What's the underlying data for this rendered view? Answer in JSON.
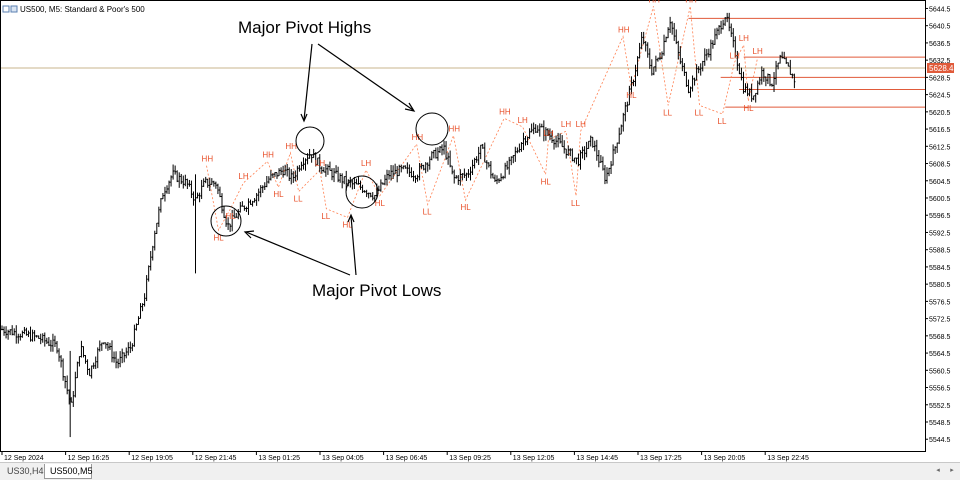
{
  "header": {
    "title": "US500, M5:  Standard & Poor's 500"
  },
  "annotations": {
    "major_pivot_highs": "Major Pivot Highs",
    "major_pivot_lows": "Major Pivot Lows"
  },
  "current_price_label": "5628.4",
  "tabs": [
    "US30,H4",
    "US500,M5"
  ],
  "colors": {
    "background": "#ffffff",
    "candle": "#000000",
    "pivot_label": "#e8502a",
    "pivot_line": "#e05a3a",
    "zigzag": "#ff7f50",
    "current_price_line": "#c8b48c"
  },
  "chart_data": {
    "type": "candlestick",
    "symbol": "US500",
    "timeframe": "M5",
    "y_axis_ticks": [
      5644.5,
      5640.5,
      5636.5,
      5632.5,
      5628.5,
      5624.5,
      5620.5,
      5616.5,
      5612.5,
      5608.5,
      5604.5,
      5600.5,
      5596.5,
      5592.5,
      5588.5,
      5584.5,
      5580.5,
      5576.5,
      5572.5,
      5568.5,
      5564.5,
      5560.5,
      5556.5,
      5552.5,
      5548.5,
      5544.5
    ],
    "x_axis_ticks": [
      "12 Sep 2024",
      "12 Sep 16:25",
      "12 Sep 19:05",
      "12 Sep 21:45",
      "13 Sep 01:25",
      "13 Sep 04:05",
      "13 Sep 06:45",
      "13 Sep 09:25",
      "13 Sep 12:05",
      "13 Sep 14:45",
      "13 Sep 17:25",
      "13 Sep 20:05",
      "13 Sep 22:45"
    ],
    "ylim": [
      5542,
      5646
    ],
    "price_path": [
      {
        "t": 0,
        "p": 5570
      },
      {
        "t": 0.02,
        "p": 5569
      },
      {
        "t": 0.04,
        "p": 5568
      },
      {
        "t": 0.06,
        "p": 5566
      },
      {
        "t": 0.075,
        "p": 5552
      },
      {
        "t": 0.085,
        "p": 5566
      },
      {
        "t": 0.095,
        "p": 5560
      },
      {
        "t": 0.11,
        "p": 5568
      },
      {
        "t": 0.125,
        "p": 5562
      },
      {
        "t": 0.14,
        "p": 5566
      },
      {
        "t": 0.155,
        "p": 5578
      },
      {
        "t": 0.165,
        "p": 5592
      },
      {
        "t": 0.175,
        "p": 5602
      },
      {
        "t": 0.185,
        "p": 5606
      },
      {
        "t": 0.2,
        "p": 5604
      },
      {
        "t": 0.21,
        "p": 5600
      },
      {
        "t": 0.22,
        "p": 5604
      },
      {
        "t": 0.232,
        "p": 5604
      },
      {
        "t": 0.245,
        "p": 5594
      },
      {
        "t": 0.26,
        "p": 5598
      },
      {
        "t": 0.275,
        "p": 5601
      },
      {
        "t": 0.29,
        "p": 5605
      },
      {
        "t": 0.305,
        "p": 5607
      },
      {
        "t": 0.315,
        "p": 5605
      },
      {
        "t": 0.325,
        "p": 5609
      },
      {
        "t": 0.335,
        "p": 5611
      },
      {
        "t": 0.345,
        "p": 5608
      },
      {
        "t": 0.36,
        "p": 5606
      },
      {
        "t": 0.375,
        "p": 5604
      },
      {
        "t": 0.39,
        "p": 5603
      },
      {
        "t": 0.405,
        "p": 5601
      },
      {
        "t": 0.42,
        "p": 5606
      },
      {
        "t": 0.435,
        "p": 5607
      },
      {
        "t": 0.45,
        "p": 5606
      },
      {
        "t": 0.465,
        "p": 5610
      },
      {
        "t": 0.48,
        "p": 5612
      },
      {
        "t": 0.49,
        "p": 5605
      },
      {
        "t": 0.505,
        "p": 5606
      },
      {
        "t": 0.52,
        "p": 5612
      },
      {
        "t": 0.535,
        "p": 5604
      },
      {
        "t": 0.55,
        "p": 5608
      },
      {
        "t": 0.565,
        "p": 5614
      },
      {
        "t": 0.58,
        "p": 5617
      },
      {
        "t": 0.595,
        "p": 5615
      },
      {
        "t": 0.61,
        "p": 5612
      },
      {
        "t": 0.625,
        "p": 5609
      },
      {
        "t": 0.64,
        "p": 5614
      },
      {
        "t": 0.655,
        "p": 5605
      },
      {
        "t": 0.665,
        "p": 5612
      },
      {
        "t": 0.675,
        "p": 5620
      },
      {
        "t": 0.685,
        "p": 5628
      },
      {
        "t": 0.695,
        "p": 5638
      },
      {
        "t": 0.705,
        "p": 5630
      },
      {
        "t": 0.715,
        "p": 5634
      },
      {
        "t": 0.725,
        "p": 5642
      },
      {
        "t": 0.735,
        "p": 5633
      },
      {
        "t": 0.745,
        "p": 5626
      },
      {
        "t": 0.755,
        "p": 5630
      },
      {
        "t": 0.77,
        "p": 5636
      },
      {
        "t": 0.785,
        "p": 5643
      },
      {
        "t": 0.795,
        "p": 5635
      },
      {
        "t": 0.805,
        "p": 5626
      },
      {
        "t": 0.815,
        "p": 5624
      },
      {
        "t": 0.825,
        "p": 5630
      },
      {
        "t": 0.835,
        "p": 5627
      },
      {
        "t": 0.845,
        "p": 5633
      },
      {
        "t": 0.855,
        "p": 5630
      },
      {
        "t": 0.86,
        "p": 5628
      }
    ],
    "pivots": [
      {
        "label": "HH",
        "t": 0.222,
        "p": 5608
      },
      {
        "label": "HL",
        "t": 0.235,
        "p": 5593
      },
      {
        "label": "HL",
        "t": 0.248,
        "p": 5598
      },
      {
        "label": "LH",
        "t": 0.262,
        "p": 5604
      },
      {
        "label": "HH",
        "t": 0.288,
        "p": 5609
      },
      {
        "label": "HH",
        "t": 0.313,
        "p": 5611
      },
      {
        "label": "HL",
        "t": 0.3,
        "p": 5603
      },
      {
        "label": "LL",
        "t": 0.322,
        "p": 5602
      },
      {
        "label": "LH",
        "t": 0.345,
        "p": 5607
      },
      {
        "label": "LL",
        "t": 0.352,
        "p": 5598
      },
      {
        "label": "HL",
        "t": 0.375,
        "p": 5596
      },
      {
        "label": "LH",
        "t": 0.395,
        "p": 5607
      },
      {
        "label": "HL",
        "t": 0.41,
        "p": 5601
      },
      {
        "label": "HH",
        "t": 0.45,
        "p": 5613
      },
      {
        "label": "LL",
        "t": 0.462,
        "p": 5599
      },
      {
        "label": "HH",
        "t": 0.49,
        "p": 5615
      },
      {
        "label": "HL",
        "t": 0.503,
        "p": 5600
      },
      {
        "label": "HH",
        "t": 0.545,
        "p": 5619
      },
      {
        "label": "LH",
        "t": 0.565,
        "p": 5617
      },
      {
        "label": "LH",
        "t": 0.593,
        "p": 5614
      },
      {
        "label": "HL",
        "t": 0.59,
        "p": 5606
      },
      {
        "label": "LH",
        "t": 0.612,
        "p": 5616
      },
      {
        "label": "LH",
        "t": 0.628,
        "p": 5616
      },
      {
        "label": "LL",
        "t": 0.623,
        "p": 5601
      },
      {
        "label": "HH",
        "t": 0.674,
        "p": 5638
      },
      {
        "label": "HL",
        "t": 0.683,
        "p": 5626
      },
      {
        "label": "HH",
        "t": 0.707,
        "p": 5645
      },
      {
        "label": "LL",
        "t": 0.723,
        "p": 5622
      },
      {
        "label": "HH",
        "t": 0.747,
        "p": 5645
      },
      {
        "label": "LL",
        "t": 0.757,
        "p": 5622
      },
      {
        "label": "LL",
        "t": 0.782,
        "p": 5620
      },
      {
        "label": "LH",
        "t": 0.795,
        "p": 5632
      },
      {
        "label": "LH",
        "t": 0.805,
        "p": 5636
      },
      {
        "label": "HL",
        "t": 0.81,
        "p": 5623
      },
      {
        "label": "LH",
        "t": 0.82,
        "p": 5633
      }
    ],
    "levels": [
      {
        "price": 5642.2,
        "t_from": 0.745
      },
      {
        "price": 5633.2,
        "t_from": 0.805
      },
      {
        "price": 5628.5,
        "t_from": 0.78
      },
      {
        "price": 5625.7,
        "t_from": 0.8
      },
      {
        "price": 5621.6,
        "t_from": 0.785
      }
    ]
  }
}
